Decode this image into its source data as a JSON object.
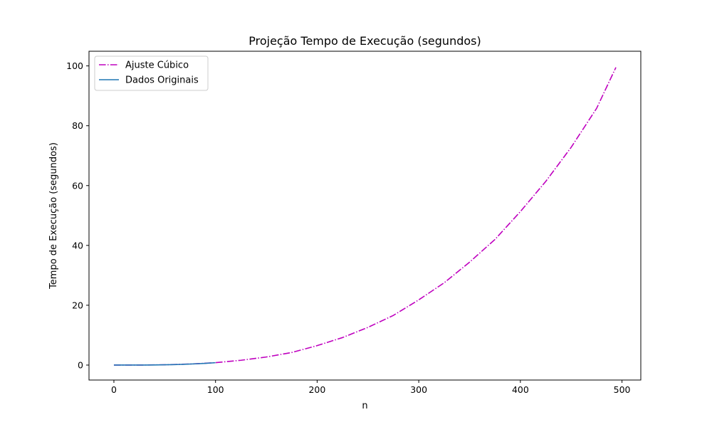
{
  "chart_data": {
    "type": "line",
    "title": "Projeção Tempo de Execução (segundos)",
    "xlabel": "n",
    "ylabel": "Tempo de Execução (segundos)",
    "xlim": [
      -24.5,
      518.5
    ],
    "ylim": [
      -5.0,
      104.9
    ],
    "xticks": [
      0,
      100,
      200,
      300,
      400,
      500
    ],
    "yticks": [
      0,
      20,
      40,
      60,
      80,
      100
    ],
    "legend_position": "upper-left",
    "grid": false,
    "series": [
      {
        "name": "Ajuste Cúbico",
        "color": "#bf00bf",
        "style": "dash-dot",
        "x": [
          0,
          25,
          50,
          75,
          100,
          125,
          150,
          175,
          200,
          225,
          250,
          275,
          300,
          325,
          350,
          375,
          400,
          425,
          450,
          475,
          494
        ],
        "y": [
          0.0,
          0.0,
          0.1,
          0.35,
          0.8,
          1.6,
          2.7,
          4.2,
          6.5,
          9.2,
          12.6,
          16.6,
          21.8,
          27.5,
          34.4,
          42.0,
          51.3,
          61.4,
          72.8,
          85.8,
          99.5
        ]
      },
      {
        "name": "Dados Originais",
        "color": "#1f77b4",
        "style": "solid",
        "x": [
          0,
          10,
          20,
          30,
          40,
          50,
          60,
          70,
          80,
          90,
          100
        ],
        "y": [
          0.0,
          0.0,
          0.0,
          0.02,
          0.05,
          0.1,
          0.17,
          0.27,
          0.41,
          0.58,
          0.8
        ]
      }
    ]
  }
}
